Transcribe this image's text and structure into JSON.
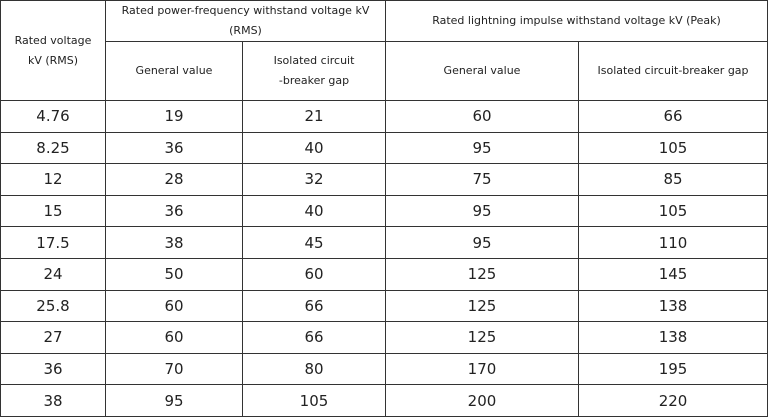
{
  "table": {
    "header": {
      "rated_voltage": [
        "Rated voltage",
        "kV (RMS)"
      ],
      "power_frequency": "Rated power-frequency withstand voltage kV (RMS)",
      "lightning_impulse": "Rated lightning impulse withstand voltage kV (Peak)",
      "pf_general": "General value",
      "pf_isolated": [
        "Isolated circuit",
        "-breaker gap"
      ],
      "li_general": "General value",
      "li_isolated": "Isolated circuit-breaker gap"
    },
    "rows": [
      [
        4.76,
        19,
        21,
        60,
        66
      ],
      [
        8.25,
        36,
        40,
        95,
        105
      ],
      [
        12,
        28,
        32,
        75,
        85
      ],
      [
        15,
        36,
        40,
        95,
        105
      ],
      [
        17.5,
        38,
        45,
        95,
        110
      ],
      [
        24,
        50,
        60,
        125,
        145
      ],
      [
        25.8,
        60,
        66,
        125,
        138
      ],
      [
        27,
        60,
        66,
        125,
        138
      ],
      [
        36,
        70,
        80,
        170,
        195
      ],
      [
        38,
        95,
        105,
        200,
        220
      ]
    ]
  }
}
